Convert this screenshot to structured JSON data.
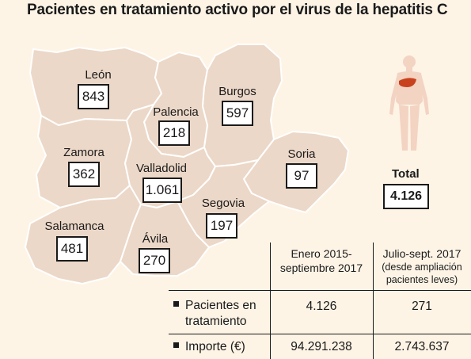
{
  "title": "Pacientes en tratamiento activo por el virus de la hepatitis C",
  "provinces": [
    {
      "name": "León",
      "value": "843"
    },
    {
      "name": "Palencia",
      "value": "218"
    },
    {
      "name": "Burgos",
      "value": "597"
    },
    {
      "name": "Zamora",
      "value": "362"
    },
    {
      "name": "Valladolid",
      "value": "1.061"
    },
    {
      "name": "Soria",
      "value": "97"
    },
    {
      "name": "Segovia",
      "value": "197"
    },
    {
      "name": "Salamanca",
      "value": "481"
    },
    {
      "name": "Ávila",
      "value": "270"
    }
  ],
  "total": {
    "label": "Total",
    "value": "4.126"
  },
  "table": {
    "col1": [
      "Enero 2015-",
      "septiembre 2017"
    ],
    "col2": [
      "Julio-sept. 2017",
      "(desde ampliación",
      "pacientes leves)"
    ],
    "rows": [
      {
        "label_lines": [
          "Pacientes en",
          "tratamiento"
        ],
        "v1": "4.126",
        "v2": "271"
      },
      {
        "label_lines": [
          "Importe (€)"
        ],
        "v1": "94.291.238",
        "v2": "2.743.637"
      }
    ]
  },
  "colors": {
    "background": "#fdf4e6",
    "region_fill": "#ecd8c8",
    "region_border": "#ffffff",
    "liver": "#c8421e",
    "body": "#f3d3c2"
  }
}
